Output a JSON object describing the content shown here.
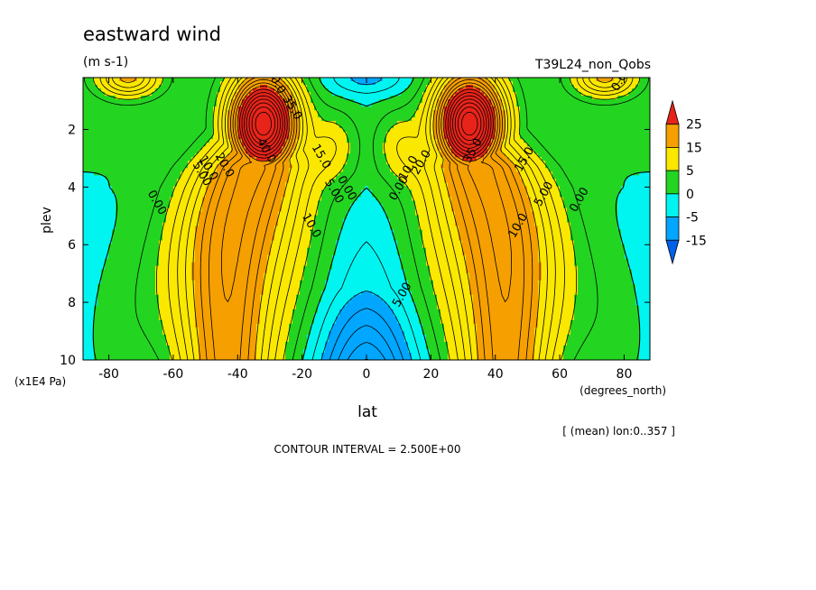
{
  "chart_data": {
    "type": "heatmap",
    "title": "eastward wind",
    "units": "(m s-1)",
    "run_label": "T39L24_non_Qobs",
    "xlabel": "lat",
    "x_units": "(degrees_north)",
    "ylabel": "plev",
    "y_units": "(x1E4 Pa)",
    "xlim": [
      -88,
      88
    ],
    "ylim": [
      10,
      0.2
    ],
    "y_reversed": true,
    "x_ticks": [
      -80,
      -60,
      -40,
      -20,
      0,
      20,
      40,
      60,
      80
    ],
    "x_tick_labels": [
      "-80",
      "-60",
      "-40",
      "-20",
      "0",
      "20",
      "40",
      "60",
      "80"
    ],
    "y_ticks": [
      2,
      4,
      6,
      8,
      10
    ],
    "y_tick_labels": [
      "2",
      "4",
      "6",
      "8",
      "10"
    ],
    "contour_interval_label": "CONTOUR INTERVAL = 2.500E+00",
    "subset_label": "[ (mean) lon:0..357 ]",
    "contour_interval": 2.5,
    "colorbar": {
      "labels": [
        "25",
        "15",
        "5",
        "0",
        "-5",
        "-15"
      ],
      "bins": [
        {
          "range": [
            25,
            100
          ],
          "color": "#e8241a"
        },
        {
          "range": [
            15,
            25
          ],
          "color": "#f5a000"
        },
        {
          "range": [
            5,
            15
          ],
          "color": "#fbe800"
        },
        {
          "range": [
            0,
            5
          ],
          "color": "#23d520"
        },
        {
          "range": [
            -5,
            0
          ],
          "color": "#00f5f0"
        },
        {
          "range": [
            -15,
            -5
          ],
          "color": "#00a6ff"
        },
        {
          "range": [
            -100,
            -15
          ],
          "color": "#0060e8"
        }
      ]
    },
    "jet_maxima": [
      {
        "lat": -32,
        "plev": 1.8,
        "u_max": 45
      },
      {
        "lat": 32,
        "plev": 1.8,
        "u_max": 45
      }
    ],
    "contour_labels": [
      {
        "text": "40.0",
        "lat": -32,
        "plev": 2.8
      },
      {
        "text": "35.0",
        "lat": -24,
        "plev": 1.3
      },
      {
        "text": "35.0",
        "lat": 34,
        "plev": 2.8
      },
      {
        "text": "30.0",
        "lat": -29,
        "plev": 0.4
      },
      {
        "text": "20.0",
        "lat": -45,
        "plev": 3.3
      },
      {
        "text": "10.0",
        "lat": -50,
        "plev": 3.4
      },
      {
        "text": "15.0",
        "lat": -15,
        "plev": 3.0
      },
      {
        "text": "10.0",
        "lat": -18,
        "plev": 5.4
      },
      {
        "text": "5.00",
        "lat": -52,
        "plev": 3.6
      },
      {
        "text": "5.00",
        "lat": -11,
        "plev": 4.2
      },
      {
        "text": "0.00",
        "lat": -7,
        "plev": 4.1
      },
      {
        "text": "0.00",
        "lat": -66,
        "plev": 4.6
      },
      {
        "text": "0.00",
        "lat": 11,
        "plev": 4.1
      },
      {
        "text": "10.0",
        "lat": 14,
        "plev": 3.4
      },
      {
        "text": "20.0",
        "lat": 18,
        "plev": 3.2
      },
      {
        "text": "15.0",
        "lat": 50,
        "plev": 3.1
      },
      {
        "text": "10.0",
        "lat": 48,
        "plev": 5.4
      },
      {
        "text": "5.00",
        "lat": 56,
        "plev": 4.3
      },
      {
        "text": "0.00",
        "lat": 67,
        "plev": 4.5
      },
      {
        "text": "5.00",
        "lat": 12,
        "plev": 7.8
      },
      {
        "text": "0.00",
        "lat": 80,
        "plev": 0.3
      }
    ],
    "legend_placement": "right",
    "grid": false
  }
}
